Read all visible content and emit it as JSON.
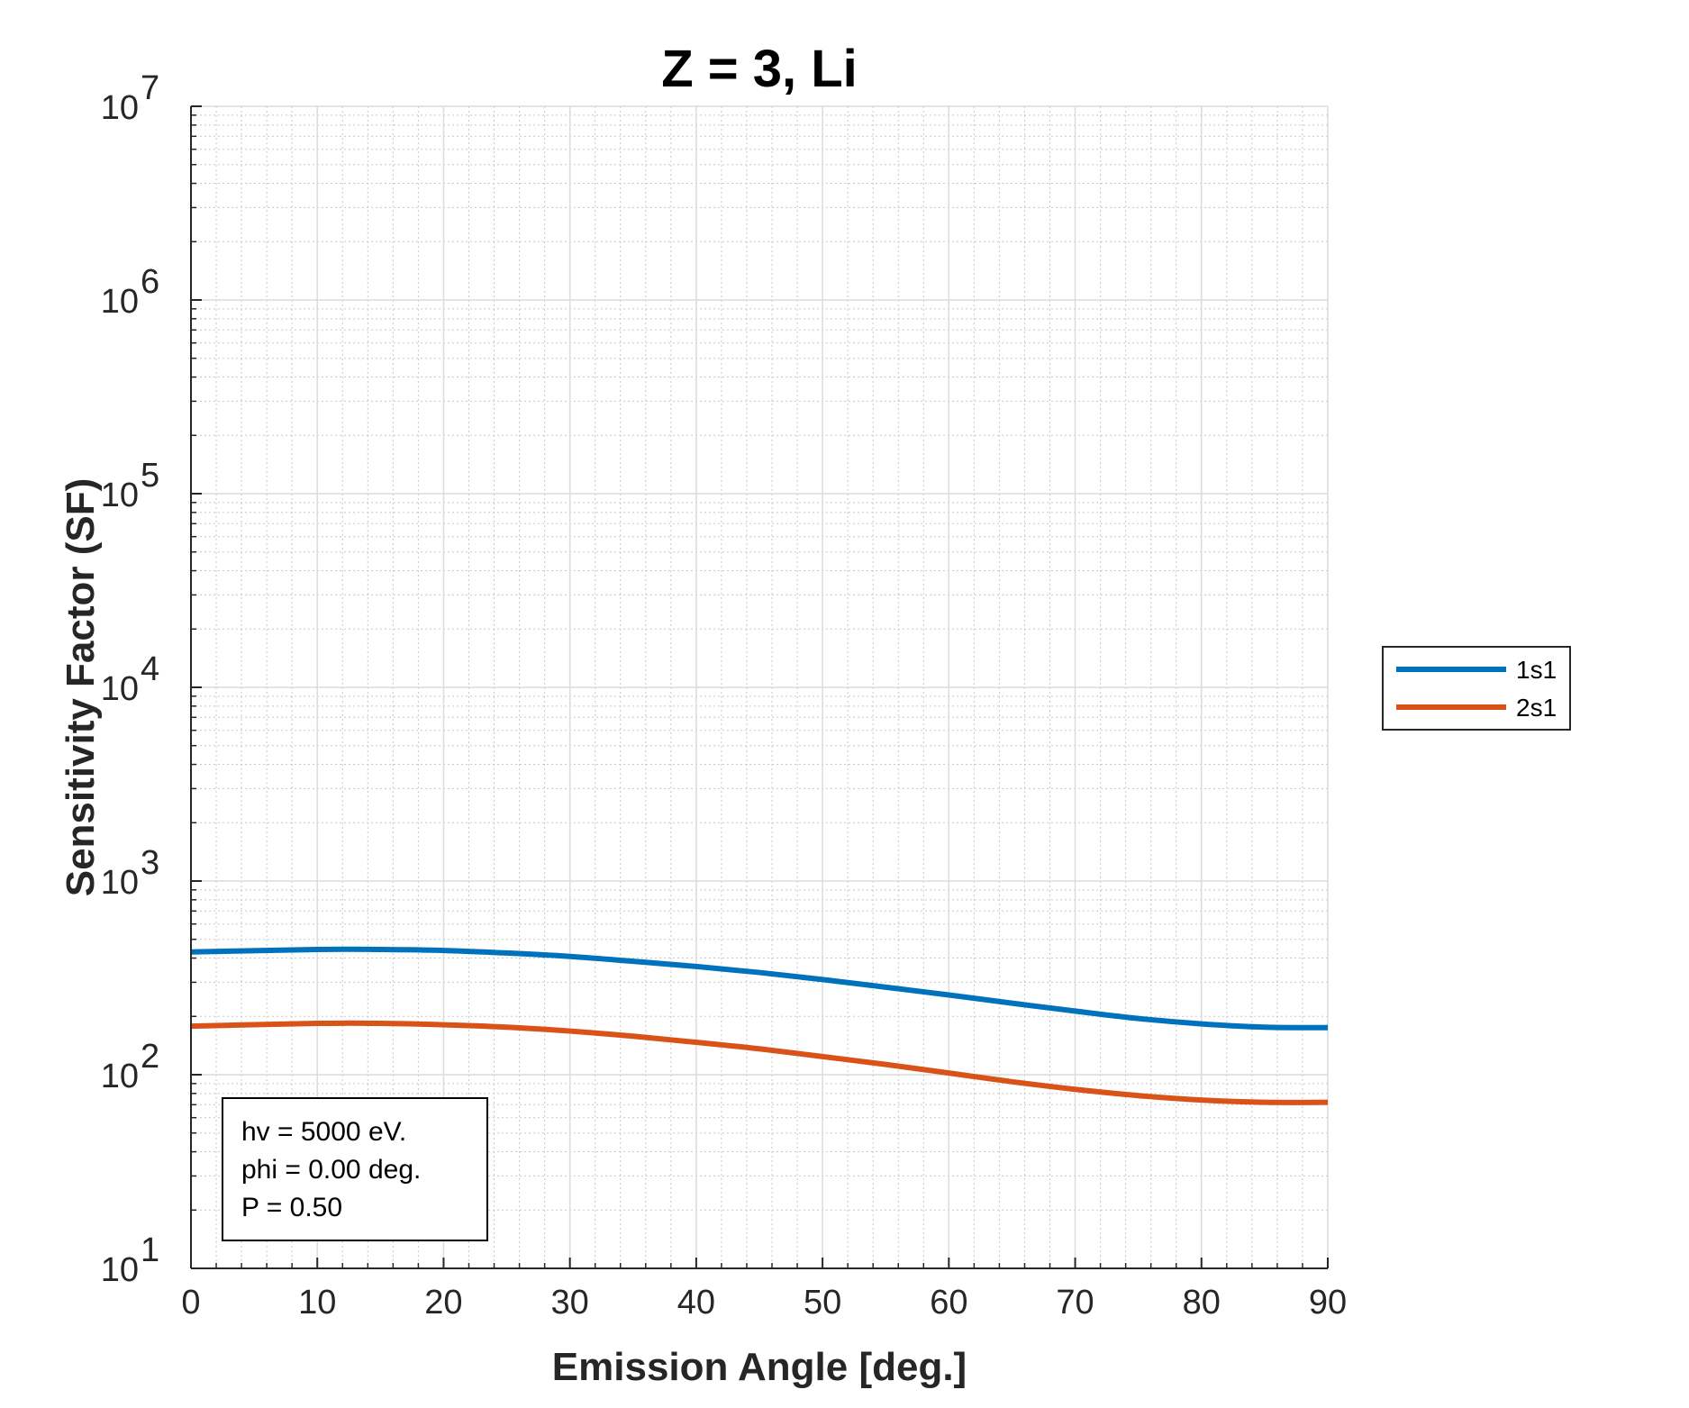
{
  "chart_data": {
    "type": "line",
    "title": "Z = 3, Li",
    "xlabel": "Emission Angle [deg.]",
    "ylabel": "Sensitivity Factor (SF)",
    "xlim": [
      0,
      90
    ],
    "ylim": [
      10,
      10000000
    ],
    "yscale": "log",
    "grid": true,
    "minor_grid": true,
    "legend_position": "outside-right",
    "xticks": [
      "0",
      "10",
      "20",
      "30",
      "40",
      "50",
      "60",
      "70",
      "80",
      "90"
    ],
    "yticks": [
      {
        "base": "10",
        "exp": "1"
      },
      {
        "base": "10",
        "exp": "2"
      },
      {
        "base": "10",
        "exp": "3"
      },
      {
        "base": "10",
        "exp": "4"
      },
      {
        "base": "10",
        "exp": "5"
      },
      {
        "base": "10",
        "exp": "6"
      },
      {
        "base": "10",
        "exp": "7"
      }
    ],
    "x": [
      0,
      10,
      15,
      20,
      25,
      30,
      35,
      40,
      45,
      50,
      55,
      60,
      65,
      70,
      75,
      80,
      85,
      90
    ],
    "series": [
      {
        "name": "1s1",
        "color": "#0072BD",
        "values": [
          430,
          443,
          443,
          438,
          425,
          408,
          385,
          362,
          337,
          310,
          283,
          258,
          234,
          213,
          195,
          183,
          176,
          175
        ]
      },
      {
        "name": "2s1",
        "color": "#D95319",
        "values": [
          178,
          184,
          184,
          181,
          176,
          168,
          158,
          147,
          136,
          124,
          113,
          102,
          92,
          84,
          78,
          74,
          72,
          72
        ]
      }
    ],
    "annotation": [
      "hv = 5000 eV.",
      "phi = 0.00 deg.",
      "P = 0.50"
    ]
  }
}
